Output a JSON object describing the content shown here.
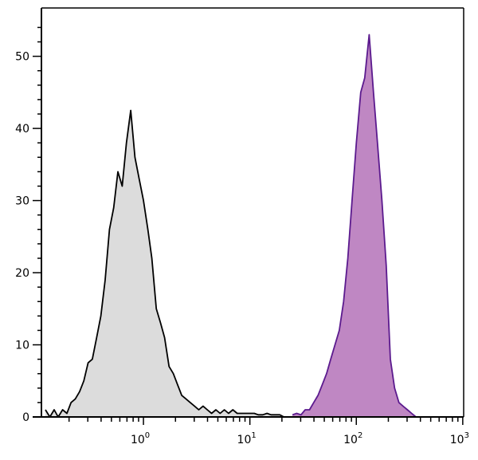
{
  "chart_data": {
    "type": "area",
    "title": "",
    "xlabel": "",
    "ylabel": "",
    "x_scale": "log",
    "xlim": [
      0.11,
      1020
    ],
    "ylim": [
      0,
      56.7
    ],
    "grid": false,
    "x_ticks": [
      {
        "base": "10",
        "exp": "0",
        "value": 1
      },
      {
        "base": "10",
        "exp": "1",
        "value": 10
      },
      {
        "base": "10",
        "exp": "2",
        "value": 100
      },
      {
        "base": "10",
        "exp": "3",
        "value": 1000
      }
    ],
    "y_ticks": [
      "0",
      "10",
      "20",
      "30",
      "40",
      "50"
    ],
    "series": [
      {
        "color_line": "#000000",
        "color_fill": "#dcdcdc",
        "x": [
          0.12,
          0.132,
          0.145,
          0.158,
          0.174,
          0.191,
          0.209,
          0.229,
          0.251,
          0.275,
          0.302,
          0.331,
          0.363,
          0.398,
          0.437,
          0.479,
          0.525,
          0.575,
          0.631,
          0.692,
          0.759,
          0.832,
          0.912,
          1.0,
          1.1,
          1.2,
          1.32,
          1.45,
          1.58,
          1.74,
          1.91,
          2.09,
          2.29,
          2.51,
          2.75,
          3.02,
          3.31,
          3.63,
          3.98,
          4.37,
          4.79,
          5.25,
          5.75,
          6.31,
          6.92,
          7.59,
          8.32,
          9.12,
          10.0,
          11.0,
          12.0,
          13.2,
          14.5,
          15.8,
          17.4,
          19.1,
          20.9
        ],
        "y": [
          1,
          0,
          1,
          0,
          1,
          0.5,
          2,
          2.5,
          3.5,
          5,
          7.5,
          8,
          11,
          14,
          19,
          26,
          29,
          34,
          32,
          38,
          42.5,
          36,
          33,
          30,
          26,
          22,
          15,
          13,
          11,
          7,
          6,
          4.5,
          3,
          2.5,
          2,
          1.5,
          1,
          1.5,
          1,
          0.5,
          1,
          0.5,
          1,
          0.5,
          1,
          0.5,
          0.5,
          0.5,
          0.5,
          0.5,
          0.3,
          0.3,
          0.5,
          0.3,
          0.3,
          0.3,
          0
        ]
      },
      {
        "color_line": "#5b1a8e",
        "color_fill": "#bf87c3",
        "x": [
          25.1,
          27.5,
          30.2,
          33.1,
          36.3,
          39.8,
          43.7,
          47.9,
          52.5,
          57.5,
          63.1,
          69.2,
          75.9,
          83.2,
          91.2,
          100,
          110,
          120,
          132,
          145,
          158,
          174,
          191,
          209,
          229,
          251,
          275,
          302,
          331,
          363
        ],
        "y": [
          0.3,
          0.5,
          0.3,
          1,
          1,
          2,
          3,
          4.5,
          6,
          8,
          10,
          12,
          16,
          22,
          30,
          38,
          45,
          47,
          53,
          45,
          38,
          30,
          21,
          8,
          4,
          2,
          1.5,
          1,
          0.5,
          0
        ]
      }
    ]
  }
}
